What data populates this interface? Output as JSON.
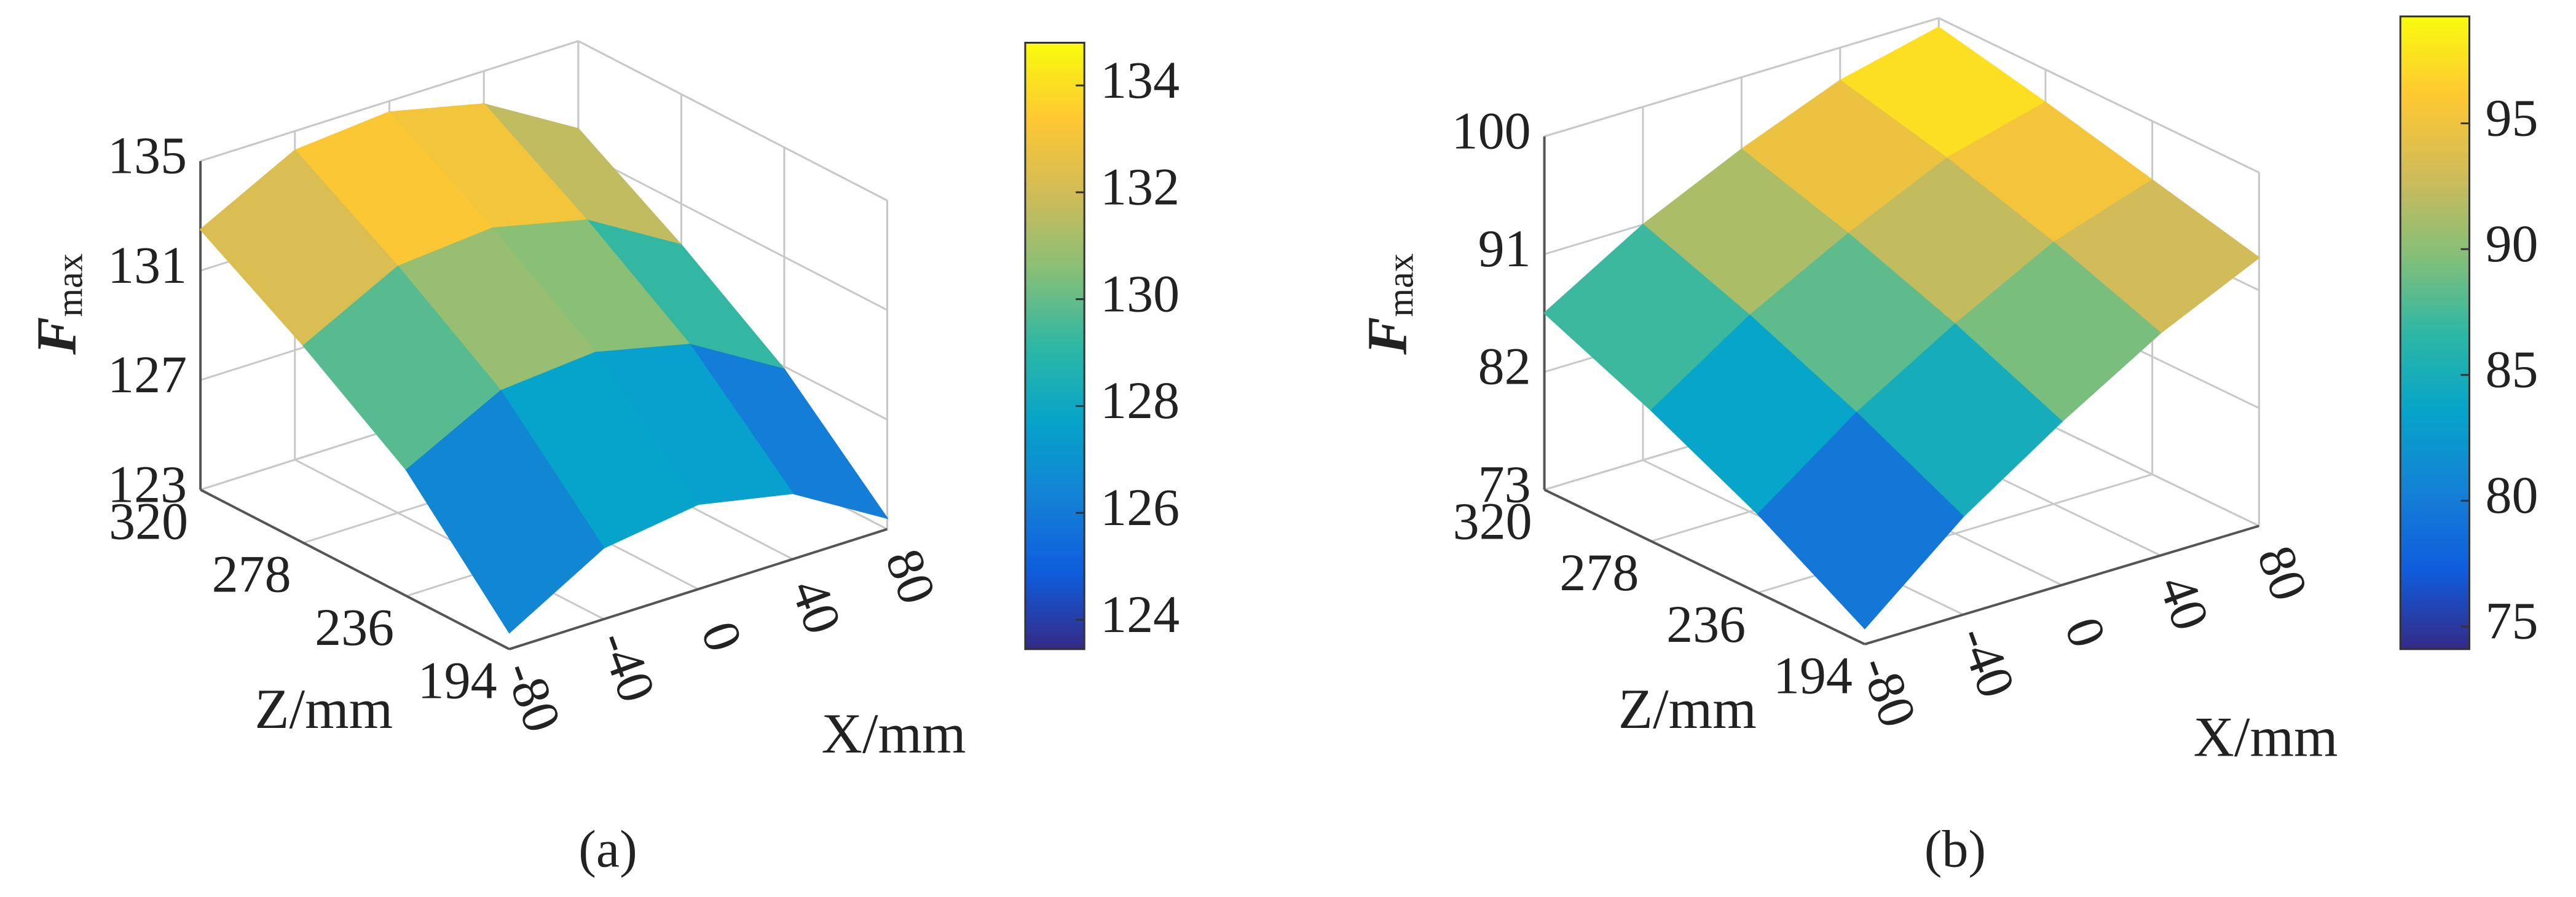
{
  "chart_data": [
    {
      "type": "surface",
      "caption": "(a)",
      "xlabel": "X/mm",
      "ylabel": "Z/mm",
      "zlabel_symbol": "F",
      "zlabel_subscript": "max",
      "x": [
        -80,
        -40,
        0,
        40,
        80
      ],
      "y": [
        194,
        236,
        278,
        320
      ],
      "values": [
        [
          123.6,
          125.6,
          126.1,
          125.4,
          123.4
        ],
        [
          127.6,
          129.4,
          129.7,
          128.9,
          126.9
        ],
        [
          130.2,
          132.0,
          132.3,
          131.5,
          129.5
        ],
        [
          132.5,
          134.3,
          134.6,
          133.8,
          131.8
        ]
      ],
      "xlim": [
        -80,
        80
      ],
      "xticks": [
        -80,
        -40,
        0,
        40,
        80
      ],
      "ylim": [
        194,
        320
      ],
      "yticks": [
        194,
        236,
        278,
        320
      ],
      "zlim": [
        123,
        135
      ],
      "zticks": [
        123,
        127,
        131,
        135
      ],
      "colormap": "parula",
      "grid": true,
      "colorbar": {
        "lim": [
          123.45,
          134.8
        ],
        "ticks": [
          124,
          126,
          128,
          130,
          132,
          134
        ]
      }
    },
    {
      "type": "surface",
      "caption": "(b)",
      "xlabel": "X/mm",
      "ylabel": "Z/mm",
      "zlabel_symbol": "F",
      "zlabel_subscript": "max",
      "x": [
        -80,
        -40,
        0,
        40,
        80
      ],
      "y": [
        194,
        236,
        278,
        320
      ],
      "values": [
        [
          74.2,
          80.5,
          85.5,
          90.0,
          93.5
        ],
        [
          79.0,
          84.5,
          89.0,
          93.0,
          95.5
        ],
        [
          83.0,
          88.0,
          92.0,
          95.5,
          97.5
        ],
        [
          86.5,
          91.0,
          94.5,
          97.5,
          99.3
        ]
      ],
      "xlim": [
        -80,
        80
      ],
      "xticks": [
        -80,
        -40,
        0,
        40,
        80
      ],
      "ylim": [
        194,
        320
      ],
      "yticks": [
        194,
        236,
        278,
        320
      ],
      "zlim": [
        73,
        100
      ],
      "zticks": [
        73,
        82,
        91,
        100
      ],
      "colormap": "parula",
      "grid": true,
      "colorbar": {
        "lim": [
          74.1,
          99.25
        ],
        "ticks": [
          75,
          80,
          85,
          90,
          95
        ]
      }
    }
  ]
}
